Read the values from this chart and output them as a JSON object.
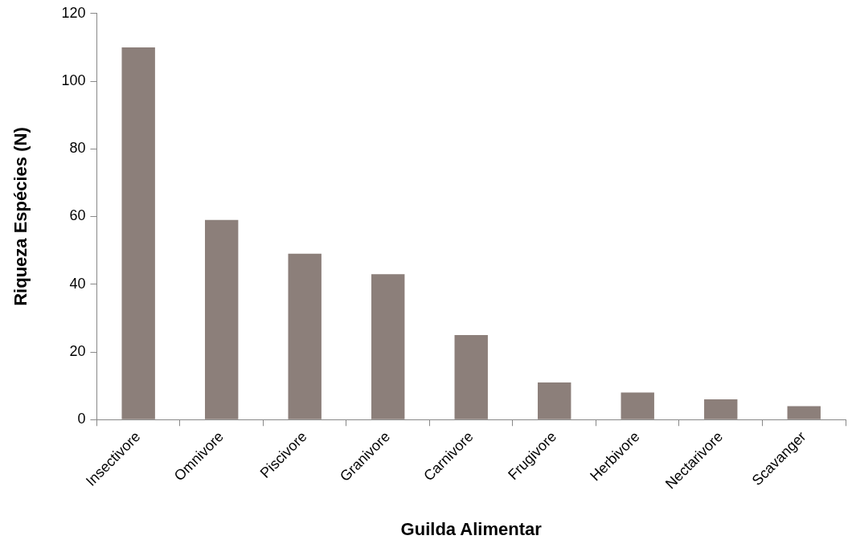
{
  "chart_data": {
    "type": "bar",
    "xlabel": "Guilda Alimentar",
    "ylabel": "Riqueza Espécies (N)",
    "categories": [
      "Insectivore",
      "Omnivore",
      "Piscivore",
      "Granivore",
      "Carnivore",
      "Frugivore",
      "Herbivore",
      "Nectarivore",
      "Scavanger"
    ],
    "values": [
      110,
      59,
      49,
      43,
      25,
      11,
      8,
      6,
      4
    ],
    "color": "#8c7f7a",
    "ylim": [
      0,
      120
    ],
    "yticks": [
      0,
      20,
      40,
      60,
      80,
      100,
      120
    ],
    "grid": false,
    "legend": false
  }
}
